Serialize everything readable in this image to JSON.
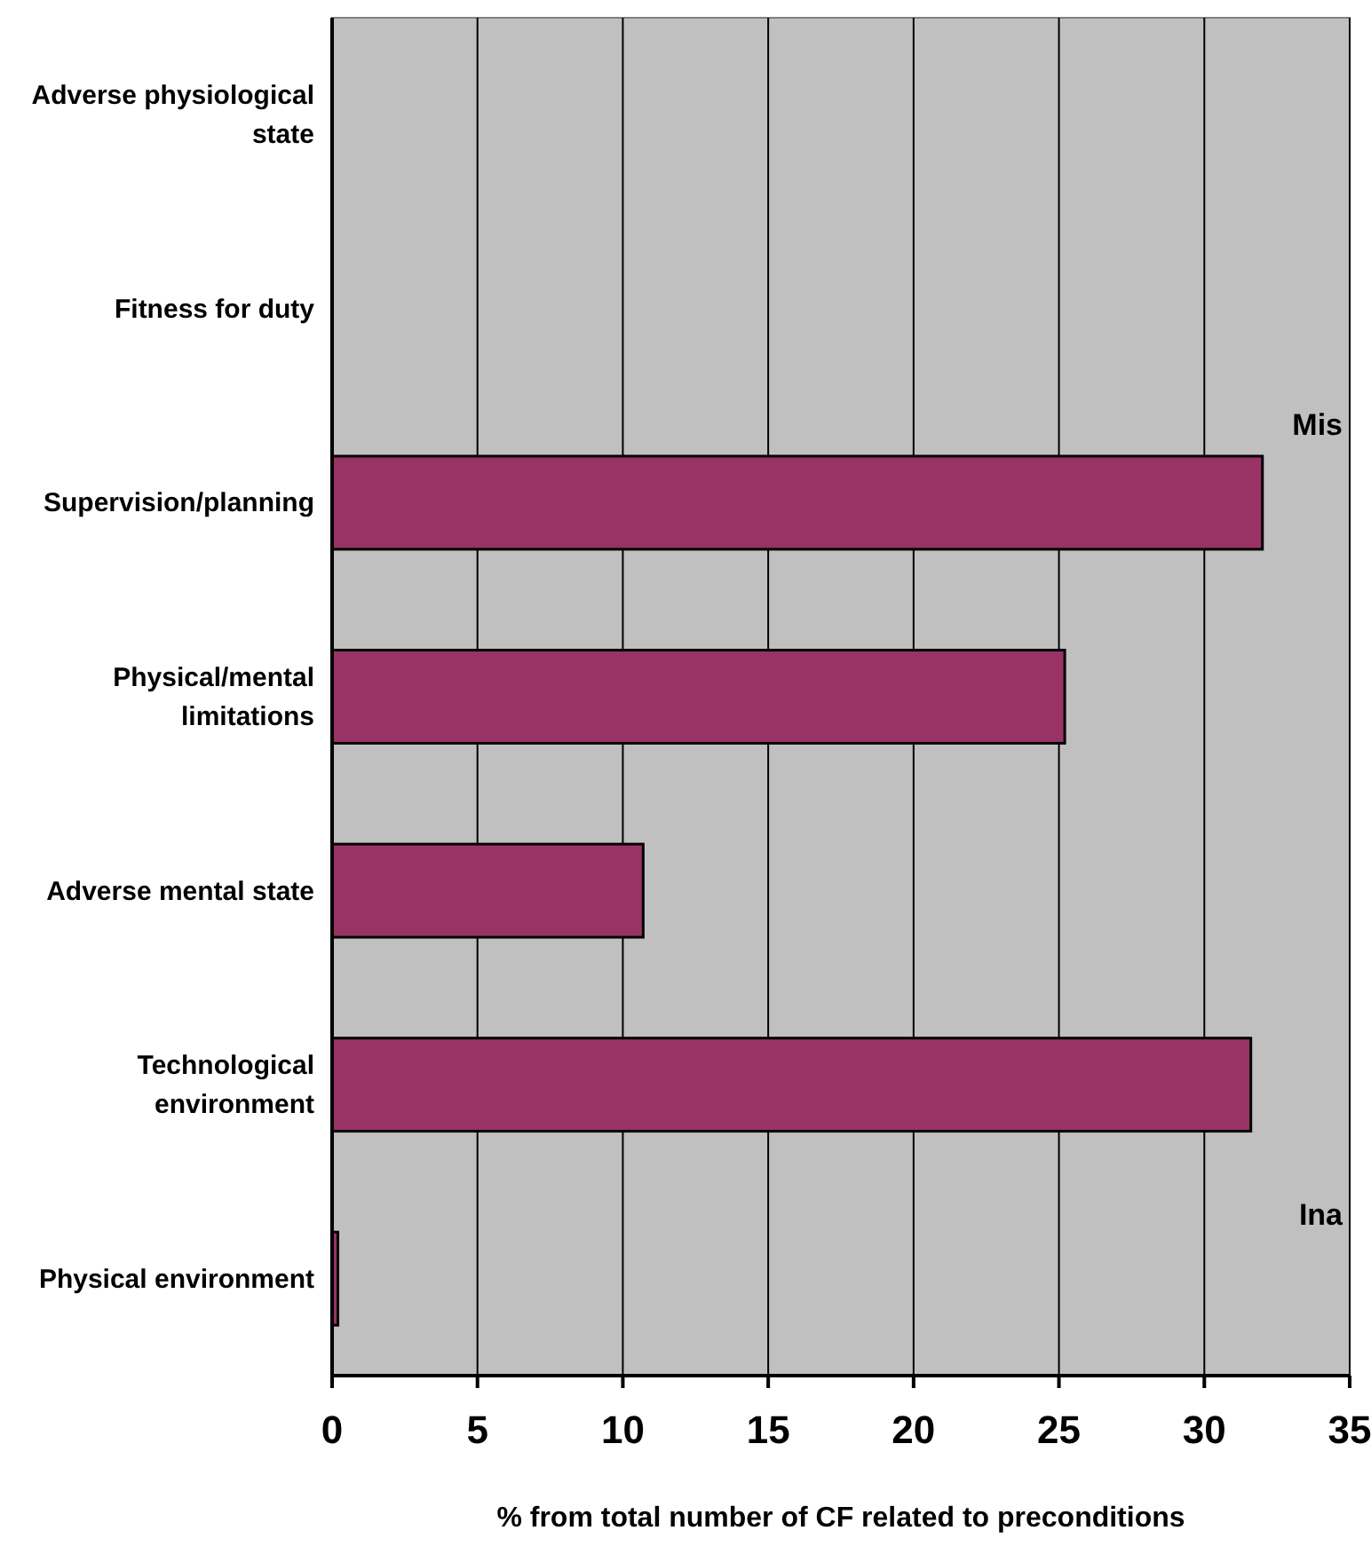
{
  "chart_data": {
    "type": "bar",
    "orientation": "horizontal",
    "categories": [
      "Adverse physiological state",
      "Fitness for duty",
      "Supervision/planning",
      "Physical/mental limitations",
      "Adverse mental state",
      "Technological environment",
      "Physical environment"
    ],
    "values": [
      0,
      0,
      32,
      25.2,
      10.7,
      31.6,
      0.2
    ],
    "color": "#993366",
    "xlabel": "% from total number of CF related to preconditions",
    "xlim": [
      0,
      35
    ],
    "xticks": [
      0,
      5,
      10,
      15,
      20,
      25,
      30,
      35
    ],
    "grid": "x",
    "annotations": [
      "Mis",
      "Ina"
    ]
  }
}
